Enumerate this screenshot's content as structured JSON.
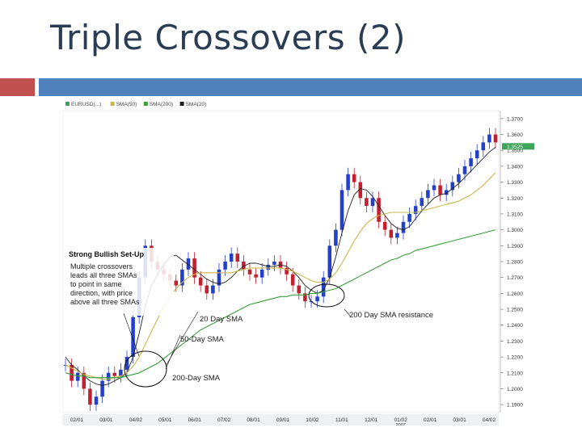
{
  "slide": {
    "title": "Triple Crossovers (2)"
  },
  "colors": {
    "accent_red": "#c0504d",
    "accent_blue": "#4f81bd",
    "title_color": "#2b3d55",
    "candle_up": "#2540c8",
    "candle_down": "#c02030",
    "sma20": "#222222",
    "sma50": "#c9b84a",
    "sma200": "#39a03a",
    "price_marker": "#3da55a"
  },
  "chart_data": {
    "type": "line",
    "legend": [
      {
        "label": "EURUSD(...)",
        "color": "#3da55a"
      },
      {
        "label": "SMA(50)",
        "color": "#c9b84a"
      },
      {
        "label": "SMA(200)",
        "color": "#39a03a"
      },
      {
        "label": "SMA(20)",
        "color": "#222222"
      }
    ],
    "yticks": [
      "1.3700",
      "1.3600",
      "1.3500",
      "1.3400",
      "1.3300",
      "1.3200",
      "1.3100",
      "1.3000",
      "1.2900",
      "1.2800",
      "1.2700",
      "1.2600",
      "1.2500",
      "1.2400",
      "1.2300",
      "1.2200",
      "1.2100",
      "1.2000",
      "1.1900"
    ],
    "current_price_label": "1.3525",
    "current_price": 1.3525,
    "ylim": [
      1.185,
      1.375
    ],
    "xticks": [
      "02/01",
      "03/01",
      "04/02",
      "05/01",
      "06/01",
      "07/02",
      "08/01",
      "09/01",
      "10/02",
      "11/01",
      "12/01",
      "01/02",
      "02/01",
      "03/01",
      "04/02"
    ],
    "xtick_year": "2007",
    "x": [
      0,
      2,
      4,
      6,
      8,
      10,
      12,
      14,
      16,
      18,
      20,
      22,
      24,
      26,
      28,
      30,
      32,
      34,
      36,
      38,
      40,
      42,
      44,
      46,
      48,
      50,
      52,
      54,
      56,
      58,
      60,
      62,
      64,
      66,
      68,
      70,
      72,
      74,
      76,
      78,
      80,
      82,
      84,
      86,
      88,
      90,
      92,
      94,
      96,
      98,
      100,
      102,
      104,
      106,
      108,
      110,
      112,
      114,
      116,
      118,
      120,
      122,
      124,
      126,
      128,
      130,
      132,
      134,
      136,
      138,
      140
    ],
    "series": [
      {
        "type": "price",
        "values": [
          1.215,
          1.205,
          1.21,
          1.2,
          1.19,
          1.195,
          1.205,
          1.21,
          1.208,
          1.212,
          1.22,
          1.245,
          1.27,
          1.29,
          1.28,
          1.275,
          1.272,
          1.268,
          1.265,
          1.275,
          1.282,
          1.27,
          1.265,
          1.26,
          1.265,
          1.275,
          1.28,
          1.285,
          1.28,
          1.275,
          1.272,
          1.27,
          1.275,
          1.278,
          1.28,
          1.276,
          1.272,
          1.265,
          1.26,
          1.255,
          1.255,
          1.258,
          1.27,
          1.29,
          1.3,
          1.325,
          1.335,
          1.33,
          1.32,
          1.315,
          1.32,
          1.305,
          1.3,
          1.295,
          1.298,
          1.305,
          1.31,
          1.315,
          1.32,
          1.325,
          1.328,
          1.322,
          1.325,
          1.33,
          1.335,
          1.34,
          1.345,
          1.35,
          1.355,
          1.36,
          1.355
        ]
      },
      {
        "type": "sma20",
        "values": [
          1.22,
          1.215,
          1.212,
          1.208,
          1.205,
          1.203,
          1.202,
          1.203,
          1.205,
          1.207,
          1.21,
          1.22,
          1.235,
          1.252,
          1.265,
          1.272,
          1.278,
          1.283,
          1.284,
          1.281,
          1.278,
          1.275,
          1.272,
          1.269,
          1.267,
          1.266,
          1.267,
          1.27,
          1.274,
          1.277,
          1.279,
          1.279,
          1.278,
          1.277,
          1.277,
          1.278,
          1.277,
          1.274,
          1.27,
          1.265,
          1.262,
          1.26,
          1.262,
          1.27,
          1.283,
          1.298,
          1.312,
          1.322,
          1.326,
          1.325,
          1.321,
          1.315,
          1.309,
          1.304,
          1.301,
          1.3,
          1.302,
          1.307,
          1.312,
          1.316,
          1.32,
          1.322,
          1.323,
          1.326,
          1.329,
          1.333,
          1.337,
          1.341,
          1.345,
          1.349,
          1.352
        ]
      },
      {
        "type": "sma50",
        "values": [
          1.215,
          1.213,
          1.211,
          1.209,
          1.208,
          1.207,
          1.206,
          1.206,
          1.207,
          1.208,
          1.21,
          1.214,
          1.22,
          1.228,
          1.236,
          1.244,
          1.252,
          1.258,
          1.263,
          1.267,
          1.27,
          1.272,
          1.273,
          1.273,
          1.273,
          1.273,
          1.273,
          1.273,
          1.274,
          1.275,
          1.276,
          1.276,
          1.276,
          1.276,
          1.276,
          1.276,
          1.275,
          1.274,
          1.272,
          1.27,
          1.268,
          1.267,
          1.267,
          1.269,
          1.273,
          1.279,
          1.286,
          1.293,
          1.299,
          1.304,
          1.307,
          1.309,
          1.31,
          1.311,
          1.311,
          1.311,
          1.311,
          1.311,
          1.312,
          1.313,
          1.314,
          1.315,
          1.316,
          1.317,
          1.318,
          1.32,
          1.322,
          1.325,
          1.328,
          1.332,
          1.336
        ]
      },
      {
        "type": "sma200",
        "values": [
          1.21,
          1.209,
          1.208,
          1.208,
          1.207,
          1.207,
          1.207,
          1.207,
          1.207,
          1.207,
          1.208,
          1.209,
          1.21,
          1.212,
          1.214,
          1.216,
          1.219,
          1.222,
          1.225,
          1.228,
          1.231,
          1.234,
          1.237,
          1.239,
          1.241,
          1.243,
          1.245,
          1.247,
          1.249,
          1.251,
          1.253,
          1.254,
          1.255,
          1.256,
          1.257,
          1.258,
          1.258,
          1.259,
          1.259,
          1.259,
          1.26,
          1.26,
          1.261,
          1.262,
          1.263,
          1.265,
          1.267,
          1.269,
          1.271,
          1.273,
          1.275,
          1.277,
          1.279,
          1.281,
          1.282,
          1.284,
          1.285,
          1.287,
          1.288,
          1.289,
          1.29,
          1.291,
          1.292,
          1.293,
          1.294,
          1.295,
          1.296,
          1.297,
          1.298,
          1.299,
          1.3
        ]
      }
    ],
    "annotations": {
      "setup_title": "Strong Bullish Set-Up",
      "setup_lines": [
        "Multiple crossovers",
        "leads all three SMAs",
        "to point in same",
        "direction, with price",
        "above all three SMAs"
      ],
      "sma20_label": "20 Day SMA",
      "sma50_label": "50-Day SMA",
      "sma200_label": "200-Day SMA",
      "resistance_label": "200 Day SMA resistance"
    }
  }
}
